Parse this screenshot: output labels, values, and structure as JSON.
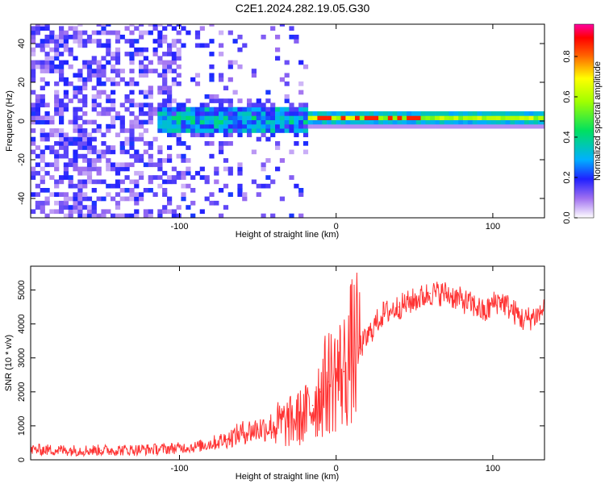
{
  "title": "C2E1.2024.282.19.05.G30",
  "chart_data": [
    {
      "type": "heatmap",
      "xlabel": "Height of straight line (km)",
      "ylabel": "Frequency (Hz)",
      "xlim": [
        -195,
        133
      ],
      "ylim": [
        -50,
        50
      ],
      "x_ticks": [
        -100,
        0,
        100
      ],
      "y_ticks": [
        -40,
        -20,
        0,
        20,
        40
      ],
      "colorbar": {
        "label": "Normalized spectral amplitude",
        "range": [
          0,
          0.96
        ],
        "ticks": [
          0.0,
          0.2,
          0.4,
          0.6,
          0.8
        ]
      },
      "features": {
        "noise_region_km": [
          -195,
          -20
        ],
        "signal_band_center_hz": 0,
        "signal_onset_km": -115,
        "peak_amplitude_region_km": [
          -20,
          60
        ]
      }
    },
    {
      "type": "line",
      "xlabel": "Height of straight line (km)",
      "ylabel": "SNR (10 * v/v)",
      "xlim": [
        -195,
        133
      ],
      "ylim": [
        0,
        5700
      ],
      "x_ticks": [
        -100,
        0,
        100
      ],
      "y_ticks": [
        0,
        1000,
        2000,
        3000,
        4000,
        5000
      ],
      "color": "#ff3333",
      "series": [
        {
          "name": "SNR",
          "x": [
            -195,
            -170,
            -150,
            -130,
            -110,
            -90,
            -80,
            -70,
            -60,
            -50,
            -40,
            -30,
            -20,
            -15,
            -10,
            -5,
            0,
            5,
            10,
            15,
            20,
            25,
            30,
            40,
            50,
            60,
            70,
            80,
            90,
            95,
            100,
            105,
            110,
            120,
            130,
            133
          ],
          "y": [
            300,
            280,
            280,
            290,
            320,
            380,
            480,
            600,
            800,
            900,
            1000,
            1100,
            1300,
            1600,
            2000,
            2300,
            2500,
            2600,
            3200,
            3300,
            3600,
            4000,
            4300,
            4500,
            4700,
            4900,
            4900,
            4700,
            4500,
            4300,
            4600,
            4700,
            4500,
            4100,
            4300,
            4500
          ]
        }
      ]
    }
  ]
}
